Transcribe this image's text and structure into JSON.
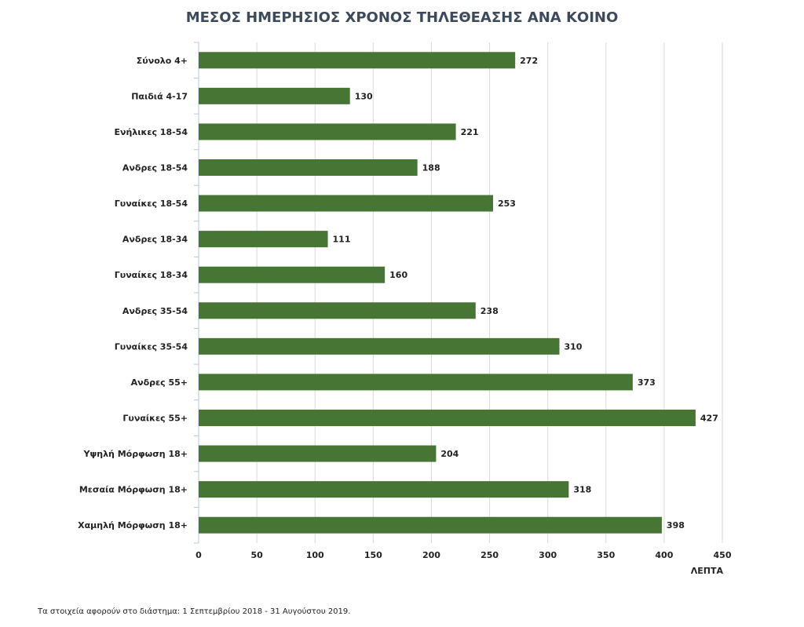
{
  "chart_data": {
    "type": "bar",
    "orientation": "horizontal",
    "title": "ΜΕΣΟΣ ΗΜΕΡΗΣΙΟΣ ΧΡΟΝΟΣ ΤΗΛΕΘΕΑΣΗΣ ΑΝΑ ΚΟΙΝΟ",
    "categories": [
      "Σύνολο 4+",
      "Παιδιά 4-17",
      "Ενήλικες 18-54",
      "Ανδρες 18-54",
      "Γυναίκες 18-54",
      "Ανδρες 18-34",
      "Γυναίκες 18-34",
      "Ανδρες 35-54",
      "Γυναίκες 35-54",
      "Ανδρες 55+",
      "Γυναίκες 55+",
      "Υψηλή Μόρφωση 18+",
      "Μεσαία Μόρφωση 18+",
      "Χαμηλή Μόρφωση 18+"
    ],
    "values": [
      272,
      130,
      221,
      188,
      253,
      111,
      160,
      238,
      310,
      373,
      427,
      204,
      318,
      398
    ],
    "color": "#467534",
    "xlim": [
      0,
      450
    ],
    "xticks": [
      0,
      50,
      100,
      150,
      200,
      250,
      300,
      350,
      400,
      450
    ],
    "xlabel": "ΛΕΠΤΑ",
    "grid": true,
    "note": "Τα στοιχεία αφορούν στο διάστημα: 1 Σεπτεμβρίου 2018 - 31 Αυγούστου 2019."
  }
}
